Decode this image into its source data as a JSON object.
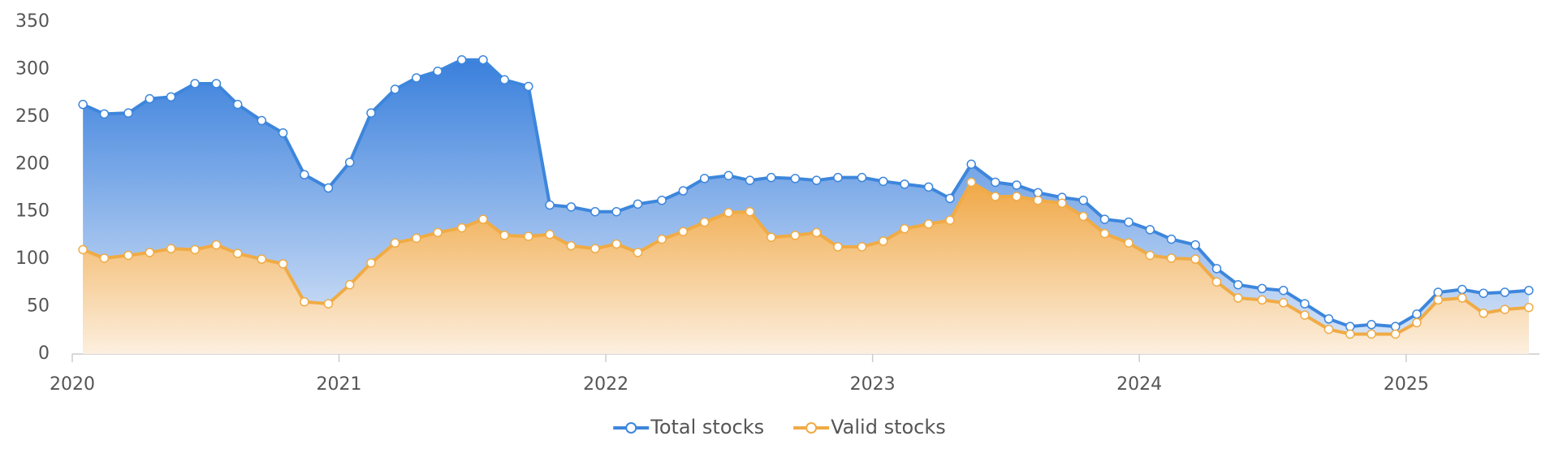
{
  "chart_data": {
    "type": "area",
    "x": [
      2020.04,
      2020.12,
      2020.21,
      2020.29,
      2020.37,
      2020.46,
      2020.54,
      2020.62,
      2020.71,
      2020.79,
      2020.87,
      2020.96,
      2021.04,
      2021.12,
      2021.21,
      2021.29,
      2021.37,
      2021.46,
      2021.54,
      2021.62,
      2021.71,
      2021.79,
      2021.87,
      2021.96,
      2022.04,
      2022.12,
      2022.21,
      2022.29,
      2022.37,
      2022.46,
      2022.54,
      2022.62,
      2022.71,
      2022.79,
      2022.87,
      2022.96,
      2023.04,
      2023.12,
      2023.21,
      2023.29,
      2023.37,
      2023.46,
      2023.54,
      2023.62,
      2023.71,
      2023.79,
      2023.87,
      2023.96,
      2024.04,
      2024.12,
      2024.21,
      2024.29,
      2024.37,
      2024.46,
      2024.54,
      2024.62,
      2024.71,
      2024.79,
      2024.87,
      2024.96,
      2025.04,
      2025.12,
      2025.21,
      2025.29,
      2025.37,
      2025.46
    ],
    "series": [
      {
        "name": "Total stocks",
        "color": "#3d86dc",
        "values": [
          263,
          253,
          254,
          269,
          271,
          285,
          285,
          263,
          246,
          233,
          189,
          175,
          202,
          254,
          279,
          291,
          298,
          310,
          310,
          289,
          282,
          157,
          155,
          150,
          150,
          158,
          162,
          172,
          185,
          188,
          183,
          186,
          185,
          183,
          186,
          186,
          182,
          179,
          176,
          164,
          200,
          181,
          178,
          170,
          165,
          162,
          142,
          139,
          131,
          121,
          115,
          90,
          73,
          69,
          67,
          53,
          37,
          29,
          31,
          29,
          42,
          65,
          68,
          64,
          65,
          67
        ]
      },
      {
        "name": "Valid stocks",
        "color": "#f0ab45",
        "values": [
          110,
          101,
          104,
          107,
          111,
          110,
          115,
          106,
          100,
          95,
          55,
          53,
          73,
          96,
          117,
          122,
          128,
          133,
          142,
          125,
          124,
          126,
          114,
          111,
          116,
          107,
          121,
          129,
          139,
          149,
          150,
          123,
          125,
          128,
          113,
          113,
          119,
          132,
          137,
          141,
          181,
          166,
          166,
          162,
          159,
          145,
          127,
          117,
          104,
          101,
          100,
          76,
          59,
          57,
          54,
          41,
          26,
          21,
          21,
          21,
          33,
          57,
          59,
          43,
          47,
          49
        ]
      }
    ],
    "xlim": [
      2020,
      2025.5
    ],
    "xticks": [
      2020,
      2021,
      2022,
      2023,
      2024,
      2025
    ],
    "ylim": [
      0,
      350
    ],
    "yticks": [
      0,
      50,
      100,
      150,
      200,
      250,
      300,
      350
    ],
    "legend": "bottom"
  }
}
